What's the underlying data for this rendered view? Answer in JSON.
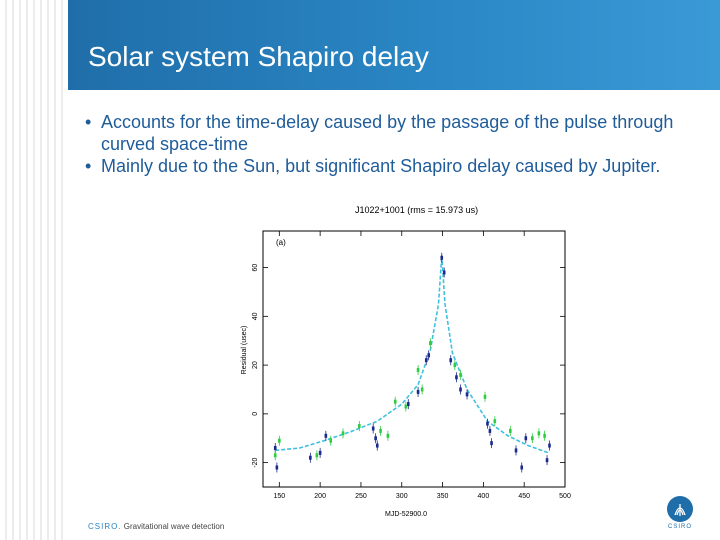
{
  "slide": {
    "title": "Solar system Shapiro delay",
    "bullets": [
      "Accounts for the time-delay caused by the passage of the pulse through curved space-time",
      "Mainly due to the Sun, but significant Shapiro delay caused by Jupiter."
    ],
    "footer": {
      "brand": "CSIRO.",
      "subject": "Gravitational wave detection",
      "credit": "",
      "logo_text": "CSIRO"
    },
    "colors": {
      "title_bar": "#2a86c4",
      "bullet_text": "#1f5c9a",
      "blue_points": "#1a2a8c",
      "green_points": "#2ecc40",
      "fit_curve": "#3fc0e0"
    }
  },
  "chart_data": {
    "type": "scatter",
    "title": "J1022+1001 (rms = 15.973 us)",
    "panel_label": "(a)",
    "xlabel": "MJD-52900.0",
    "ylabel": "Residual (usec)",
    "xlim": [
      130,
      500
    ],
    "ylim": [
      -30,
      75
    ],
    "xticks": [
      150,
      200,
      250,
      300,
      350,
      400,
      450,
      500
    ],
    "yticks": [
      -20,
      0,
      20,
      40,
      60
    ],
    "grid": false,
    "series": [
      {
        "points": [
          [
            145,
            -14
          ],
          [
            147,
            -22
          ],
          [
            188,
            -18
          ],
          [
            200,
            -16
          ],
          [
            207,
            -9
          ],
          [
            265,
            -6
          ],
          [
            268,
            -10
          ],
          [
            270,
            -13
          ],
          [
            308,
            4
          ],
          [
            320,
            9
          ],
          [
            330,
            22
          ],
          [
            333,
            24
          ],
          [
            349,
            64
          ],
          [
            352,
            58
          ],
          [
            360,
            22
          ],
          [
            367,
            15
          ],
          [
            372,
            10
          ],
          [
            380,
            8
          ],
          [
            405,
            -4
          ],
          [
            408,
            -7
          ],
          [
            410,
            -12
          ],
          [
            440,
            -15
          ],
          [
            447,
            -22
          ],
          [
            452,
            -10
          ],
          [
            478,
            -19
          ],
          [
            481,
            -13
          ]
        ]
      },
      {
        "points": [
          [
            145,
            -17
          ],
          [
            150,
            -11
          ],
          [
            196,
            -17
          ],
          [
            213,
            -11
          ],
          [
            228,
            -8
          ],
          [
            248,
            -5
          ],
          [
            274,
            -7
          ],
          [
            283,
            -9
          ],
          [
            292,
            5
          ],
          [
            305,
            3
          ],
          [
            320,
            18
          ],
          [
            325,
            10
          ],
          [
            335,
            29
          ],
          [
            365,
            20
          ],
          [
            372,
            16
          ],
          [
            402,
            7
          ],
          [
            414,
            -3
          ],
          [
            433,
            -7
          ],
          [
            460,
            -10
          ],
          [
            468,
            -8
          ],
          [
            475,
            -9
          ]
        ]
      }
    ],
    "fit_curve": [
      [
        145,
        -15
      ],
      [
        175,
        -14
      ],
      [
        205,
        -11
      ],
      [
        240,
        -7
      ],
      [
        270,
        -3
      ],
      [
        300,
        4
      ],
      [
        320,
        12
      ],
      [
        335,
        26
      ],
      [
        345,
        45
      ],
      [
        349,
        65
      ],
      [
        353,
        45
      ],
      [
        362,
        25
      ],
      [
        380,
        10
      ],
      [
        405,
        -3
      ],
      [
        430,
        -9
      ],
      [
        455,
        -13
      ],
      [
        480,
        -16
      ]
    ]
  }
}
